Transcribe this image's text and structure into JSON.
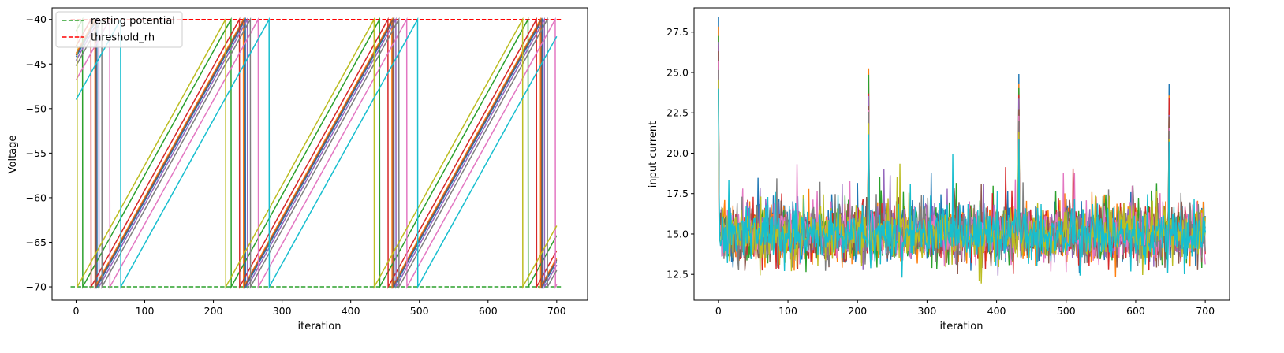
{
  "chart_data": [
    {
      "type": "line",
      "xlabel": "iteration",
      "ylabel": "Voltage",
      "xlim": [
        -35,
        745
      ],
      "ylim": [
        -71.5,
        -38.7
      ],
      "xticks": [
        0,
        100,
        200,
        300,
        400,
        500,
        600,
        700
      ],
      "yticks": [
        -70,
        -65,
        -60,
        -55,
        -50,
        -45,
        -40
      ],
      "tick_labels_x": [
        "0",
        "100",
        "200",
        "300",
        "400",
        "500",
        "600",
        "700"
      ],
      "tick_labels_y": [
        "−70",
        "−65",
        "−60",
        "−55",
        "−50",
        "−45",
        "−40"
      ],
      "legend": {
        "position": "upper-left",
        "entries": [
          {
            "label": "resting potential",
            "color": "#2ca02c",
            "style": "dashed"
          },
          {
            "label": "threshold_rh",
            "color": "#d62728",
            "style": "dashed"
          }
        ]
      },
      "reference_lines": [
        {
          "name": "resting potential",
          "y": -70,
          "x_range": [
            -8,
            707
          ],
          "color": "#2ca02c"
        },
        {
          "name": "threshold_rh",
          "y": -40,
          "x_range": [
            -8,
            707
          ],
          "color": "#ff0000"
        }
      ],
      "period": 216,
      "neuron_traces": [
        {
          "color": "#1f77b4",
          "v0": -44.2,
          "end": 700
        },
        {
          "color": "#ff7f0e",
          "v0": -43.8,
          "end": 700
        },
        {
          "color": "#2ca02c",
          "v0": -41.3,
          "end": 700
        },
        {
          "color": "#d62728",
          "v0": -43.0,
          "end": 700
        },
        {
          "color": "#9467bd",
          "v0": -44.6,
          "end": 700
        },
        {
          "color": "#8c564b",
          "v0": -44.0,
          "end": 700
        },
        {
          "color": "#e377c2",
          "v0": -46.8,
          "end": 700
        },
        {
          "color": "#7f7f7f",
          "v0": -45.2,
          "end": 700
        },
        {
          "color": "#bcbd22",
          "v0": -40.2,
          "end": 700
        },
        {
          "color": "#17becf",
          "v0": -49.0,
          "end": 700
        }
      ]
    },
    {
      "type": "line",
      "xlabel": "iteration",
      "ylabel": "input current",
      "xlim": [
        -35,
        735
      ],
      "ylim": [
        10.9,
        29.0
      ],
      "xticks": [
        0,
        100,
        200,
        300,
        400,
        500,
        600,
        700
      ],
      "yticks": [
        12.5,
        15.0,
        17.5,
        20.0,
        22.5,
        25.0,
        27.5
      ],
      "tick_labels_x": [
        "0",
        "100",
        "200",
        "300",
        "400",
        "500",
        "600",
        "700"
      ],
      "tick_labels_y": [
        "12.5",
        "15.0",
        "17.5",
        "20.0",
        "22.5",
        "25.0",
        "27.5"
      ],
      "baseline": 15.0,
      "noise_amplitude": 1.1,
      "spike_iterations": [
        0,
        216,
        432,
        648
      ],
      "spike_peaks": [
        28.7,
        25.8,
        25.5,
        24.8
      ],
      "series_colors": [
        "#1f77b4",
        "#ff7f0e",
        "#2ca02c",
        "#d62728",
        "#9467bd",
        "#8c564b",
        "#e377c2",
        "#7f7f7f",
        "#bcbd22",
        "#17becf"
      ]
    }
  ]
}
